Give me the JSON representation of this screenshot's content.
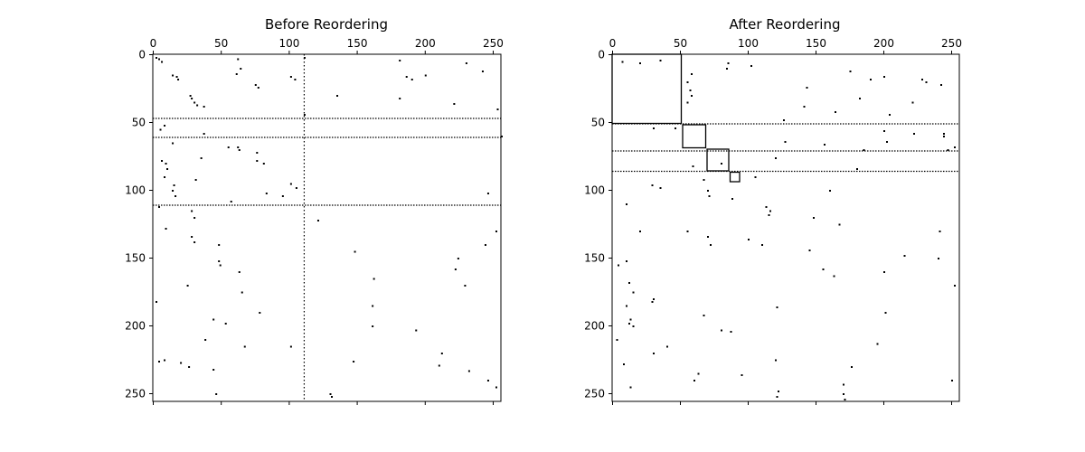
{
  "chart_data": [
    {
      "type": "heatmap",
      "title": "Before Reordering",
      "xlabel": "",
      "ylabel": "",
      "matrix_size": 256,
      "xlim": [
        0,
        256
      ],
      "ylim": [
        256,
        0
      ],
      "x_ticks": [
        0,
        50,
        100,
        150,
        200,
        250
      ],
      "y_ticks": [
        0,
        50,
        100,
        150,
        200,
        250
      ],
      "x_axis_position": "top",
      "grid": false,
      "legend": "none",
      "colors": {
        "nonzero": "#000000",
        "background": "#ffffff"
      },
      "dense_rows": [
        47,
        61,
        111
      ],
      "dense_cols": [
        111
      ],
      "scattered_points_estimated": [
        [
          2,
          2
        ],
        [
          3,
          4
        ],
        [
          5,
          6
        ],
        [
          3,
          62
        ],
        [
          10,
          64
        ],
        [
          2,
          111
        ],
        [
          4,
          181
        ],
        [
          6,
          230
        ],
        [
          12,
          242
        ],
        [
          15,
          14
        ],
        [
          16,
          17
        ],
        [
          18,
          18
        ],
        [
          14,
          61
        ],
        [
          16,
          101
        ],
        [
          18,
          104
        ],
        [
          16,
          186
        ],
        [
          18,
          190
        ],
        [
          15,
          200
        ],
        [
          22,
          75
        ],
        [
          24,
          77
        ],
        [
          30,
          27
        ],
        [
          32,
          28
        ],
        [
          35,
          30
        ],
        [
          37,
          32
        ],
        [
          38,
          37
        ],
        [
          30,
          135
        ],
        [
          32,
          181
        ],
        [
          36,
          221
        ],
        [
          40,
          253
        ],
        [
          44,
          111
        ],
        [
          52,
          8
        ],
        [
          55,
          5
        ],
        [
          58,
          37
        ],
        [
          65,
          14
        ],
        [
          68,
          55
        ],
        [
          68,
          62
        ],
        [
          70,
          63
        ],
        [
          72,
          76
        ],
        [
          78,
          6
        ],
        [
          80,
          9
        ],
        [
          84,
          10
        ],
        [
          76,
          35
        ],
        [
          78,
          76
        ],
        [
          80,
          81
        ],
        [
          90,
          8
        ],
        [
          92,
          31
        ],
        [
          95,
          101
        ],
        [
          98,
          105
        ],
        [
          102,
          83
        ],
        [
          104,
          95
        ],
        [
          96,
          15
        ],
        [
          100,
          14
        ],
        [
          104,
          16
        ],
        [
          108,
          57
        ],
        [
          102,
          246
        ],
        [
          112,
          4
        ],
        [
          115,
          28
        ],
        [
          120,
          30
        ],
        [
          122,
          121
        ],
        [
          130,
          252
        ],
        [
          134,
          28
        ],
        [
          138,
          30
        ],
        [
          140,
          48
        ],
        [
          145,
          148
        ],
        [
          152,
          48
        ],
        [
          155,
          49
        ],
        [
          160,
          63
        ],
        [
          165,
          162
        ],
        [
          170,
          25
        ],
        [
          158,
          222
        ],
        [
          175,
          65
        ],
        [
          182,
          2
        ],
        [
          185,
          161
        ],
        [
          190,
          78
        ],
        [
          195,
          44
        ],
        [
          198,
          53
        ],
        [
          203,
          193
        ],
        [
          210,
          38
        ],
        [
          215,
          67
        ],
        [
          220,
          212
        ],
        [
          225,
          8
        ],
        [
          226,
          4
        ],
        [
          227,
          20
        ],
        [
          230,
          26
        ],
        [
          232,
          44
        ],
        [
          226,
          147
        ],
        [
          229,
          210
        ],
        [
          233,
          232
        ],
        [
          240,
          246
        ],
        [
          245,
          252
        ],
        [
          250,
          46
        ],
        [
          250,
          130
        ],
        [
          252,
          131
        ],
        [
          150,
          224
        ],
        [
          170,
          229
        ],
        [
          140,
          244
        ],
        [
          128,
          9
        ],
        [
          215,
          101
        ],
        [
          60,
          256
        ],
        [
          200,
          161
        ]
      ]
    },
    {
      "type": "heatmap",
      "title": "After Reordering",
      "xlabel": "",
      "ylabel": "",
      "matrix_size": 256,
      "xlim": [
        0,
        256
      ],
      "ylim": [
        256,
        0
      ],
      "x_ticks": [
        0,
        50,
        100,
        150,
        200,
        250
      ],
      "y_ticks": [
        0,
        50,
        100,
        150,
        200,
        250
      ],
      "x_axis_position": "top",
      "grid": false,
      "legend": "none",
      "colors": {
        "nonzero": "#000000",
        "background": "#ffffff"
      },
      "dense_rows": [
        51,
        71,
        86
      ],
      "dense_cols": [],
      "block_outlines": [
        {
          "start": 0,
          "end": 51
        },
        {
          "start": 52,
          "end": 69
        },
        {
          "start": 70,
          "end": 86
        },
        {
          "start": 87,
          "end": 94
        }
      ],
      "scattered_points_estimated": [
        [
          5,
          7
        ],
        [
          6,
          85
        ],
        [
          8,
          102
        ],
        [
          10,
          84
        ],
        [
          12,
          175
        ],
        [
          16,
          200
        ],
        [
          18,
          228
        ],
        [
          20,
          231
        ],
        [
          22,
          242
        ],
        [
          24,
          143
        ],
        [
          14,
          58
        ],
        [
          20,
          55
        ],
        [
          26,
          57
        ],
        [
          30,
          58
        ],
        [
          32,
          182
        ],
        [
          35,
          221
        ],
        [
          38,
          141
        ],
        [
          42,
          164
        ],
        [
          44,
          204
        ],
        [
          48,
          126
        ],
        [
          54,
          30
        ],
        [
          54,
          46
        ],
        [
          56,
          200
        ],
        [
          58,
          222
        ],
        [
          58,
          244
        ],
        [
          64,
          127
        ],
        [
          66,
          156
        ],
        [
          64,
          202
        ],
        [
          68,
          252
        ],
        [
          70,
          247
        ],
        [
          76,
          120
        ],
        [
          80,
          80
        ],
        [
          82,
          59
        ],
        [
          84,
          180
        ],
        [
          92,
          67
        ],
        [
          96,
          29
        ],
        [
          98,
          35
        ],
        [
          100,
          70
        ],
        [
          104,
          71
        ],
        [
          106,
          88
        ],
        [
          112,
          113
        ],
        [
          115,
          116
        ],
        [
          118,
          115
        ],
        [
          120,
          148
        ],
        [
          125,
          167
        ],
        [
          130,
          20
        ],
        [
          130,
          55
        ],
        [
          134,
          70
        ],
        [
          136,
          100
        ],
        [
          130,
          241
        ],
        [
          140,
          72
        ],
        [
          144,
          145
        ],
        [
          148,
          215
        ],
        [
          150,
          240
        ],
        [
          152,
          10
        ],
        [
          155,
          4
        ],
        [
          158,
          155
        ],
        [
          163,
          163
        ],
        [
          168,
          12
        ],
        [
          170,
          252
        ],
        [
          175,
          15
        ],
        [
          180,
          30
        ],
        [
          182,
          29
        ],
        [
          185,
          10
        ],
        [
          186,
          121
        ],
        [
          190,
          201
        ],
        [
          192,
          67
        ],
        [
          195,
          13
        ],
        [
          200,
          15
        ],
        [
          203,
          80
        ],
        [
          204,
          87
        ],
        [
          210,
          3
        ],
        [
          213,
          195
        ],
        [
          220,
          30
        ],
        [
          225,
          120
        ],
        [
          228,
          8
        ],
        [
          230,
          176
        ],
        [
          235,
          63
        ],
        [
          236,
          95
        ],
        [
          240,
          250
        ],
        [
          243,
          170
        ],
        [
          245,
          13
        ],
        [
          248,
          122
        ],
        [
          250,
          170
        ],
        [
          252,
          121
        ],
        [
          254,
          171
        ],
        [
          35,
          55
        ],
        [
          90,
          105
        ],
        [
          100,
          160
        ],
        [
          160,
          200
        ],
        [
          6,
          20
        ],
        [
          4,
          35
        ],
        [
          18,
          190
        ],
        [
          70,
          185
        ],
        [
          140,
          110
        ],
        [
          110,
          10
        ],
        [
          215,
          40
        ],
        [
          240,
          60
        ],
        [
          60,
          244
        ],
        [
          198,
          12
        ]
      ]
    }
  ]
}
